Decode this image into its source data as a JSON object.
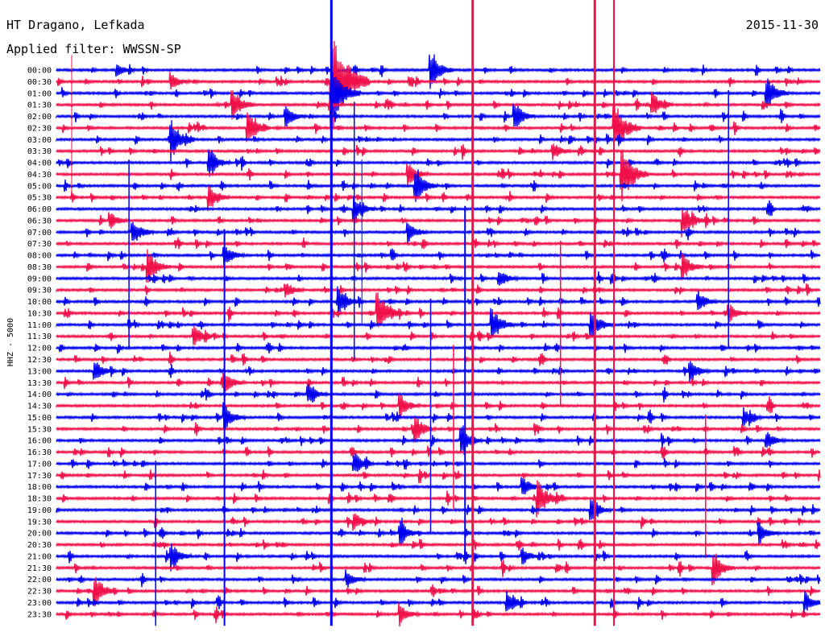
{
  "header": {
    "station": "HT Dragano, Lefkada",
    "filter": "Applied filter: WWSSN-SP",
    "date": "2015-11-30"
  },
  "axis_label": "HHZ - 5000",
  "colors": {
    "blue": "#0000ee",
    "red": "#f0104a"
  },
  "chart_data": {
    "type": "line",
    "title": "HT Dragano, Lefkada",
    "subtitle": "Applied filter: WWSSN-SP",
    "date": "2015-11-30",
    "ylabel": "HHZ - 5000",
    "row_minutes": 30,
    "row_labels": [
      "00:00",
      "00:30",
      "01:00",
      "01:30",
      "02:00",
      "02:30",
      "03:00",
      "03:30",
      "04:00",
      "04:30",
      "05:00",
      "05:30",
      "06:00",
      "06:30",
      "07:00",
      "07:30",
      "08:00",
      "08:30",
      "09:00",
      "09:30",
      "10:00",
      "10:30",
      "11:00",
      "11:30",
      "12:00",
      "12:30",
      "13:00",
      "13:30",
      "14:00",
      "14:30",
      "15:00",
      "15:30",
      "16:00",
      "16:30",
      "17:00",
      "17:30",
      "18:00",
      "18:30",
      "19:00",
      "19:30",
      "20:00",
      "20:30",
      "21:00",
      "21:30",
      "22:00",
      "22:30",
      "23:00",
      "23:30"
    ],
    "trace_colors": [
      "blue",
      "red"
    ],
    "events": [
      {
        "row": 0,
        "t": 0.49,
        "amp": 1.6
      },
      {
        "row": 0,
        "t": 0.08,
        "amp": 0.5
      },
      {
        "row": 1,
        "t": 0.36,
        "amp": 5.0
      },
      {
        "row": 1,
        "t": 0.15,
        "amp": 0.8
      },
      {
        "row": 2,
        "t": 0.36,
        "amp": 3.0
      },
      {
        "row": 2,
        "t": 0.93,
        "amp": 1.5
      },
      {
        "row": 3,
        "t": 0.23,
        "amp": 1.5
      },
      {
        "row": 3,
        "t": 0.78,
        "amp": 1.2
      },
      {
        "row": 4,
        "t": 0.3,
        "amp": 1.0
      },
      {
        "row": 4,
        "t": 0.6,
        "amp": 1.2
      },
      {
        "row": 5,
        "t": 0.25,
        "amp": 1.5
      },
      {
        "row": 5,
        "t": 0.73,
        "amp": 2.5
      },
      {
        "row": 6,
        "t": 0.15,
        "amp": 1.8
      },
      {
        "row": 7,
        "t": 0.65,
        "amp": 0.8
      },
      {
        "row": 8,
        "t": 0.2,
        "amp": 1.2
      },
      {
        "row": 9,
        "t": 0.74,
        "amp": 2.5
      },
      {
        "row": 9,
        "t": 0.46,
        "amp": 1.2
      },
      {
        "row": 10,
        "t": 0.47,
        "amp": 1.5
      },
      {
        "row": 11,
        "t": 0.2,
        "amp": 1.2
      },
      {
        "row": 12,
        "t": 0.39,
        "amp": 1.2
      },
      {
        "row": 13,
        "t": 0.07,
        "amp": 0.8
      },
      {
        "row": 13,
        "t": 0.82,
        "amp": 1.5
      },
      {
        "row": 14,
        "t": 0.1,
        "amp": 1.2
      },
      {
        "row": 14,
        "t": 0.46,
        "amp": 1.0
      },
      {
        "row": 16,
        "t": 0.22,
        "amp": 1.0
      },
      {
        "row": 17,
        "t": 0.12,
        "amp": 1.5
      },
      {
        "row": 17,
        "t": 0.82,
        "amp": 1.2
      },
      {
        "row": 18,
        "t": 0.58,
        "amp": 0.8
      },
      {
        "row": 19,
        "t": 0.3,
        "amp": 0.8
      },
      {
        "row": 20,
        "t": 0.37,
        "amp": 1.2
      },
      {
        "row": 20,
        "t": 0.84,
        "amp": 1.0
      },
      {
        "row": 21,
        "t": 0.42,
        "amp": 2.0
      },
      {
        "row": 21,
        "t": 0.88,
        "amp": 0.8
      },
      {
        "row": 22,
        "t": 0.57,
        "amp": 1.6
      },
      {
        "row": 22,
        "t": 0.7,
        "amp": 1.4
      },
      {
        "row": 23,
        "t": 0.18,
        "amp": 1.0
      },
      {
        "row": 26,
        "t": 0.05,
        "amp": 1.0
      },
      {
        "row": 26,
        "t": 0.83,
        "amp": 1.0
      },
      {
        "row": 27,
        "t": 0.22,
        "amp": 1.0
      },
      {
        "row": 28,
        "t": 0.33,
        "amp": 0.8
      },
      {
        "row": 29,
        "t": 0.45,
        "amp": 1.0
      },
      {
        "row": 30,
        "t": 0.22,
        "amp": 1.2
      },
      {
        "row": 30,
        "t": 0.9,
        "amp": 0.8
      },
      {
        "row": 31,
        "t": 0.47,
        "amp": 1.2
      },
      {
        "row": 32,
        "t": 0.53,
        "amp": 1.2
      },
      {
        "row": 32,
        "t": 0.93,
        "amp": 0.8
      },
      {
        "row": 34,
        "t": 0.39,
        "amp": 1.0
      },
      {
        "row": 36,
        "t": 0.61,
        "amp": 1.0
      },
      {
        "row": 37,
        "t": 0.63,
        "amp": 1.8
      },
      {
        "row": 38,
        "t": 0.7,
        "amp": 1.0
      },
      {
        "row": 39,
        "t": 0.39,
        "amp": 0.8
      },
      {
        "row": 40,
        "t": 0.45,
        "amp": 1.0
      },
      {
        "row": 40,
        "t": 0.92,
        "amp": 1.0
      },
      {
        "row": 42,
        "t": 0.15,
        "amp": 1.2
      },
      {
        "row": 42,
        "t": 0.61,
        "amp": 0.8
      },
      {
        "row": 43,
        "t": 0.86,
        "amp": 1.5
      },
      {
        "row": 44,
        "t": 0.38,
        "amp": 0.8
      },
      {
        "row": 45,
        "t": 0.05,
        "amp": 1.5
      },
      {
        "row": 46,
        "t": 0.59,
        "amp": 1.0
      },
      {
        "row": 46,
        "t": 0.98,
        "amp": 1.0
      },
      {
        "row": 47,
        "t": 0.45,
        "amp": 0.8
      }
    ],
    "grid": false,
    "legend": "none"
  }
}
